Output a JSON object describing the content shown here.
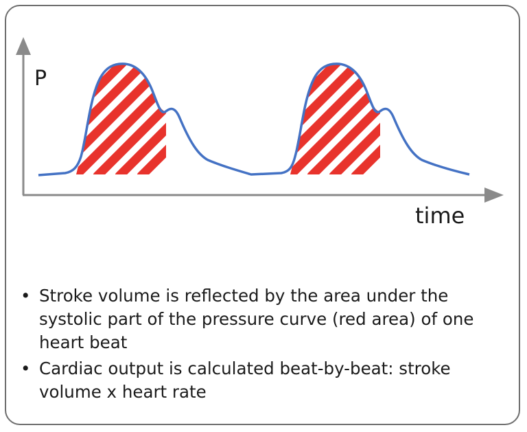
{
  "diagram": {
    "y_axis_label": "P",
    "x_axis_label": "time",
    "legend_colors": {
      "pressure_curve": "#4472c4",
      "stroke_area": "#e8332c",
      "axis": "#8a8a8a"
    }
  },
  "bullets": [
    {
      "marker": "•",
      "text": "Stroke volume is reflected by the area under the systolic part of the pressure curve (red area) of one heart beat"
    },
    {
      "marker": "•",
      "text": "Cardiac output is calculated beat-by-beat: stroke volume x heart rate"
    }
  ]
}
